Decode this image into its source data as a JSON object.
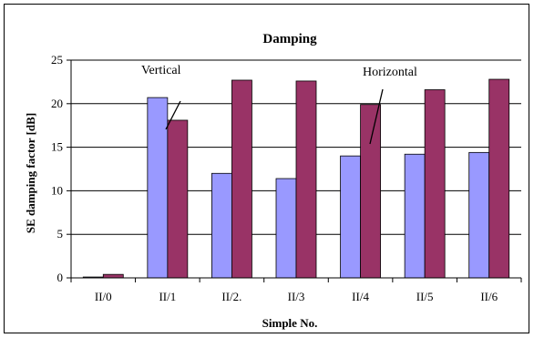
{
  "chart_data": {
    "type": "bar",
    "title": "Damping",
    "xlabel": "Simple No.",
    "ylabel": "SE damping factor [dB]",
    "ylim": [
      0,
      25
    ],
    "yticks": [
      "0",
      "5",
      "10",
      "15",
      "20",
      "25"
    ],
    "categories": [
      "II/0",
      "II/1",
      "II/2.",
      "II/3",
      "II/4",
      "II/5",
      "II/6"
    ],
    "series": [
      {
        "key": "vertical",
        "values": [
          0.1,
          20.7,
          12.0,
          11.4,
          14.0,
          14.2,
          14.4
        ],
        "color": "#9999ff"
      },
      {
        "key": "horizontal",
        "values": [
          0.4,
          18.1,
          22.7,
          22.6,
          19.9,
          21.6,
          22.8
        ],
        "color": "#993366"
      }
    ],
    "annotations": {
      "vertical": "Vertical",
      "horizontal": "Horizontal"
    },
    "grid": true
  }
}
